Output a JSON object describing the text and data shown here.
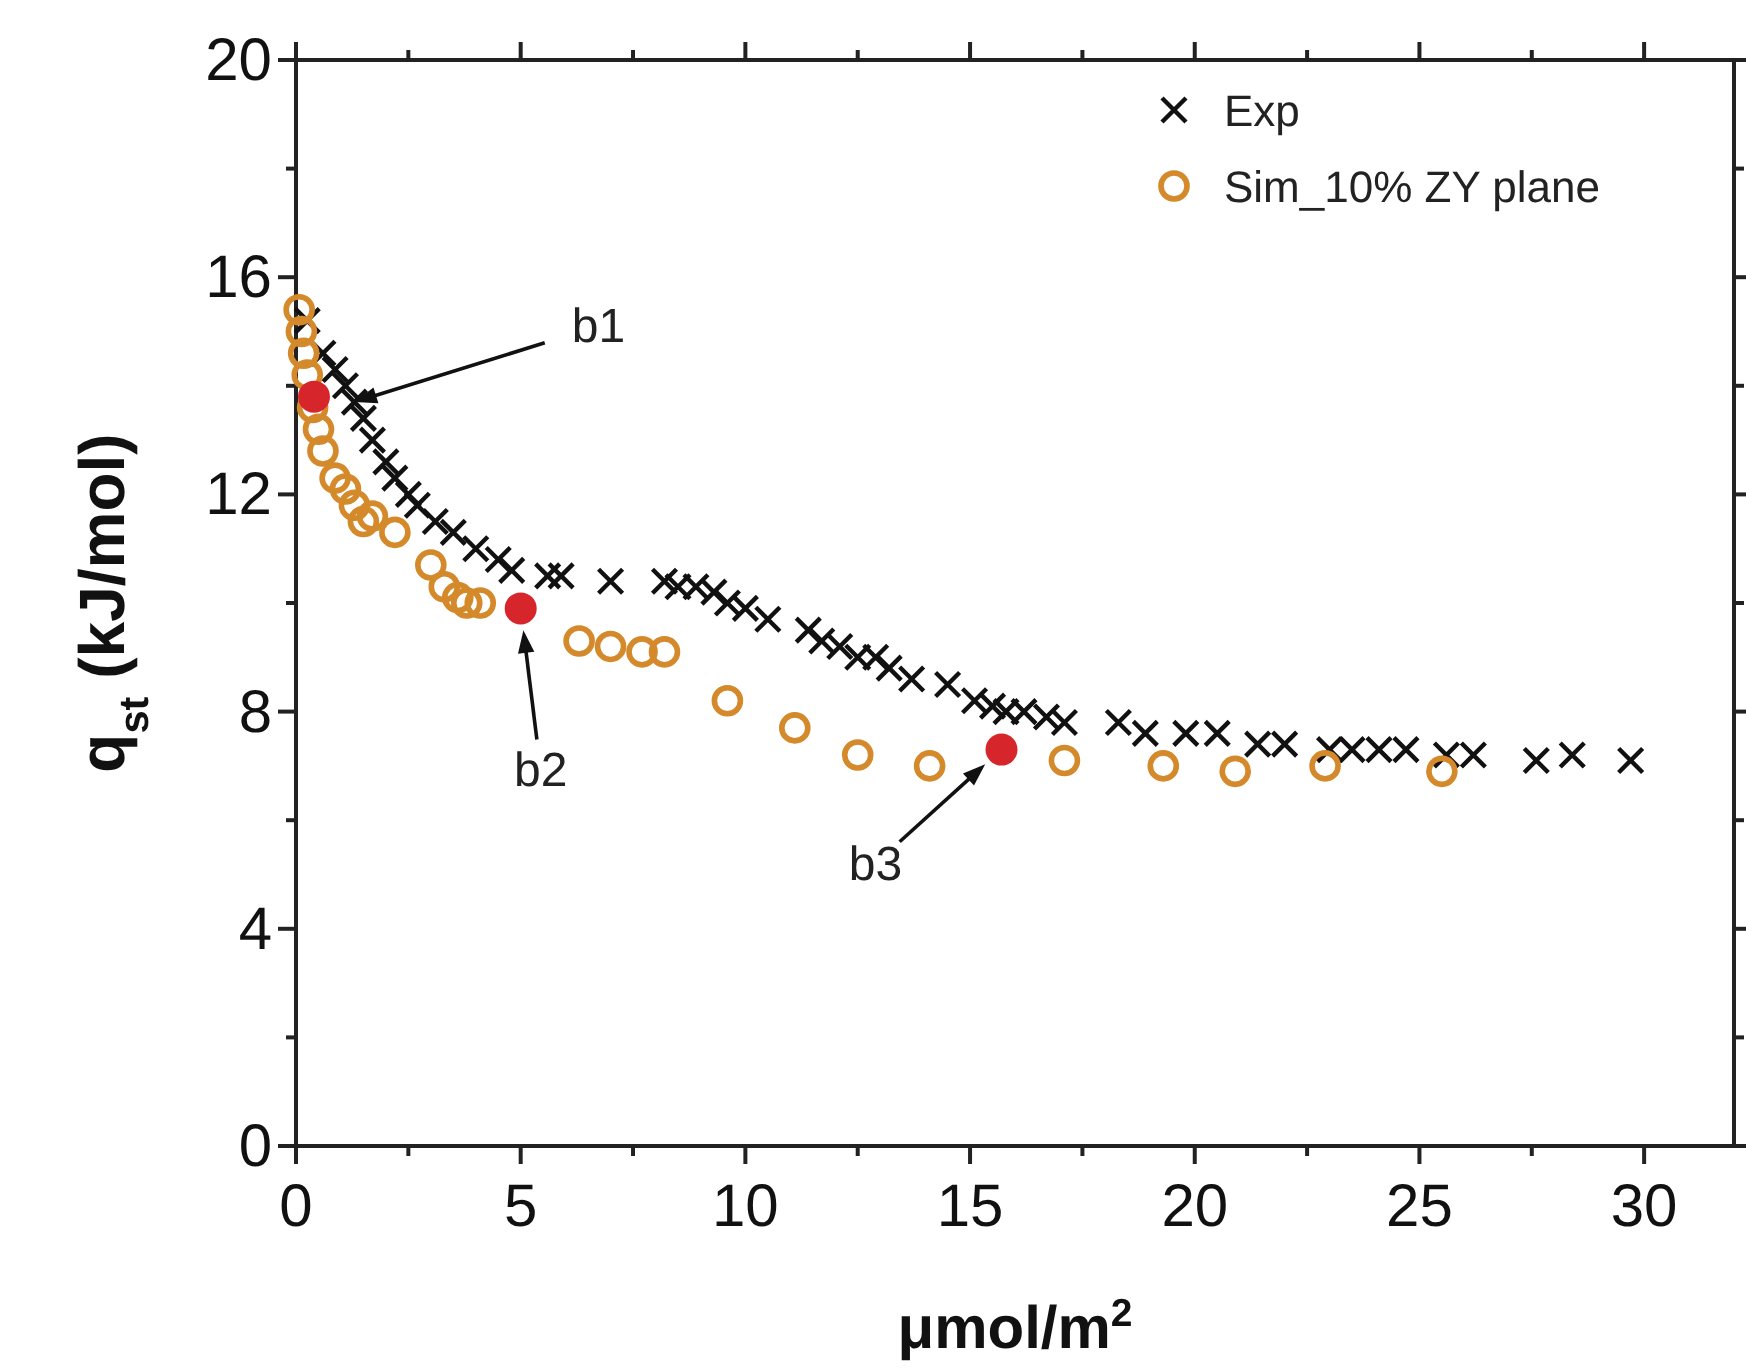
{
  "chart_data": {
    "type": "scatter",
    "xlabel": "μmol/m$^{2}$",
    "ylabel": "q$_{st}$ (kJ/mol)",
    "xlim": [
      0,
      32
    ],
    "ylim": [
      0,
      20
    ],
    "xticks": [
      0,
      {
        "value": 2.5,
        "label": null
      },
      5,
      {
        "value": 7.5,
        "label": null
      },
      10,
      {
        "value": 12.5,
        "label": null
      },
      15,
      {
        "value": 17.5,
        "label": null
      },
      20,
      {
        "value": 22.5,
        "label": null
      },
      25,
      {
        "value": 27.5,
        "label": null
      },
      30
    ],
    "yticks": [
      0,
      {
        "value": 2,
        "label": null
      },
      4,
      {
        "value": 6,
        "label": null
      },
      8,
      {
        "value": 10,
        "label": null
      },
      12,
      {
        "value": 14,
        "label": null
      },
      16,
      {
        "value": 18,
        "label": null
      },
      20
    ],
    "grid": false,
    "legend": "top right",
    "annotations": [
      {
        "text": "b1",
        "x": 1.3,
        "y": 13.7
      },
      {
        "text": "b2",
        "x": 5.0,
        "y": 9.9
      },
      {
        "text": "b3",
        "x": 15.7,
        "y": 7.3
      }
    ],
    "series": [
      {
        "name": "Exp",
        "color": "#111111",
        "marker": "cross",
        "x": [
          0.25,
          0.6,
          0.87,
          1.1,
          1.3,
          1.5,
          1.7,
          2.0,
          2.2,
          2.5,
          2.7,
          3.1,
          3.5,
          4.0,
          4.5,
          4.8,
          5.6,
          5.9,
          7.0,
          8.2,
          8.5,
          8.9,
          9.3,
          9.6,
          10.0,
          10.5,
          11.4,
          11.7,
          12.1,
          12.5,
          12.9,
          13.2,
          13.7,
          14.5,
          15.1,
          15.5,
          15.8,
          16.2,
          16.7,
          17.1,
          18.3,
          18.9,
          19.8,
          20.5,
          21.4,
          22.0,
          23.0,
          23.5,
          24.1,
          24.7,
          25.6,
          26.2,
          27.6,
          28.4,
          29.7
        ],
        "values": [
          15.2,
          14.6,
          14.3,
          14.0,
          13.7,
          13.4,
          13.0,
          12.6,
          12.3,
          12.0,
          11.8,
          11.5,
          11.3,
          11.0,
          10.8,
          10.6,
          10.5,
          10.5,
          10.4,
          10.4,
          10.3,
          10.3,
          10.2,
          10.0,
          9.9,
          9.7,
          9.5,
          9.3,
          9.2,
          9.0,
          9.0,
          8.8,
          8.6,
          8.5,
          8.2,
          8.1,
          8.0,
          8.0,
          7.9,
          7.8,
          7.8,
          7.6,
          7.6,
          7.6,
          7.4,
          7.4,
          7.3,
          7.3,
          7.3,
          7.3,
          7.2,
          7.2,
          7.1,
          7.2,
          7.1
        ]
      },
      {
        "name": "Sim_10% ZY plane",
        "color": "#d4892a",
        "marker": "circle",
        "x": [
          0.07,
          0.12,
          0.17,
          0.25,
          0.37,
          0.5,
          0.6,
          0.87,
          1.1,
          1.3,
          1.5,
          1.7,
          2.2,
          3.0,
          3.3,
          3.6,
          3.8,
          4.1,
          6.3,
          7.0,
          7.7,
          8.2,
          9.6,
          11.1,
          12.5,
          14.1,
          17.1,
          19.3,
          20.9,
          22.9,
          25.5
        ],
        "values": [
          15.4,
          15.0,
          14.6,
          14.2,
          13.6,
          13.2,
          12.8,
          12.3,
          12.1,
          11.8,
          11.5,
          11.6,
          11.3,
          10.7,
          10.3,
          10.1,
          10.0,
          10.0,
          9.3,
          9.2,
          9.1,
          9.1,
          8.2,
          7.7,
          7.2,
          7.0,
          7.1,
          7.0,
          6.9,
          7.0,
          6.9
        ]
      },
      {
        "color": "#d7262b",
        "marker": "circle",
        "x": [
          0.4,
          5.0,
          15.7
        ],
        "values": [
          13.8,
          9.9,
          7.3
        ]
      }
    ]
  }
}
